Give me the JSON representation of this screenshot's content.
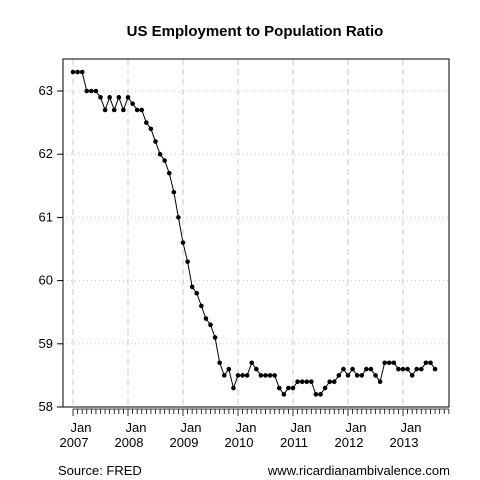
{
  "chart_data": {
    "type": "line",
    "title": "US Employment to Population Ratio",
    "xlabel": "",
    "ylabel": "",
    "ylim": [
      58,
      63.5
    ],
    "y_ticks": [
      "58",
      "59",
      "60",
      "61",
      "62",
      "63"
    ],
    "x_ticks": [
      {
        "month": "Jan",
        "year": "2007"
      },
      {
        "month": "Jan",
        "year": "2008"
      },
      {
        "month": "Jan",
        "year": "2009"
      },
      {
        "month": "Jan",
        "year": "2010"
      },
      {
        "month": "Jan",
        "year": "2011"
      },
      {
        "month": "Jan",
        "year": "2012"
      },
      {
        "month": "Jan",
        "year": "2013"
      }
    ],
    "grid": true,
    "legend": "none",
    "start": "2007-01",
    "series": [
      {
        "values": [
          63.3,
          63.3,
          63.3,
          63.0,
          63.0,
          63.0,
          62.9,
          62.7,
          62.9,
          62.7,
          62.9,
          62.7,
          62.9,
          62.8,
          62.7,
          62.7,
          62.5,
          62.4,
          62.2,
          62.0,
          61.9,
          61.7,
          61.4,
          61.0,
          60.6,
          60.3,
          59.9,
          59.8,
          59.6,
          59.4,
          59.3,
          59.1,
          58.7,
          58.5,
          58.6,
          58.3,
          58.5,
          58.5,
          58.5,
          58.7,
          58.6,
          58.5,
          58.5,
          58.5,
          58.5,
          58.3,
          58.2,
          58.3,
          58.3,
          58.4,
          58.4,
          58.4,
          58.4,
          58.2,
          58.2,
          58.3,
          58.4,
          58.4,
          58.5,
          58.6,
          58.5,
          58.6,
          58.5,
          58.5,
          58.6,
          58.6,
          58.5,
          58.4,
          58.7,
          58.7,
          58.7,
          58.6,
          58.6,
          58.6,
          58.5,
          58.6,
          58.6,
          58.7,
          58.7,
          58.6
        ]
      }
    ],
    "colors": {
      "line": "#000000",
      "grid": "#c8c8c8",
      "frame": "#000000"
    }
  },
  "footer": {
    "source": "Source: FRED",
    "site": "www.ricardianambivalence.com"
  }
}
